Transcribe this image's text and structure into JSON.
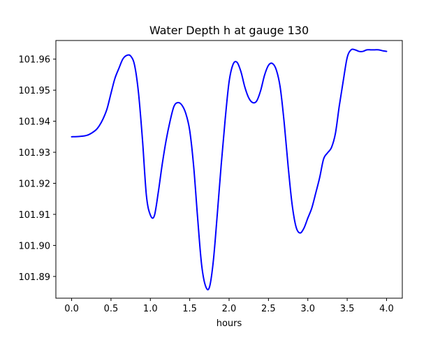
{
  "chart_data": {
    "type": "line",
    "title": "Water Depth h at gauge 130",
    "xlabel": "hours",
    "ylabel": "",
    "xlim": [
      -0.2,
      4.2
    ],
    "ylim": [
      101.883,
      101.966
    ],
    "x_ticks": [
      0.0,
      0.5,
      1.0,
      1.5,
      2.0,
      2.5,
      3.0,
      3.5,
      4.0
    ],
    "x_tick_labels": [
      "0.0",
      "0.5",
      "1.0",
      "1.5",
      "2.0",
      "2.5",
      "3.0",
      "3.5",
      "4.0"
    ],
    "y_ticks": [
      101.89,
      101.9,
      101.91,
      101.92,
      101.93,
      101.94,
      101.95,
      101.96
    ],
    "y_tick_labels": [
      "101.89",
      "101.90",
      "101.91",
      "101.92",
      "101.93",
      "101.94",
      "101.95",
      "101.96"
    ],
    "grid": false,
    "legend": "none",
    "series": [
      {
        "color": "#0000ff",
        "x": [
          0.0,
          0.1,
          0.2,
          0.3,
          0.35,
          0.4,
          0.45,
          0.5,
          0.55,
          0.6,
          0.65,
          0.7,
          0.75,
          0.8,
          0.85,
          0.9,
          0.95,
          1.0,
          1.05,
          1.1,
          1.15,
          1.2,
          1.25,
          1.3,
          1.35,
          1.4,
          1.45,
          1.5,
          1.55,
          1.6,
          1.65,
          1.7,
          1.75,
          1.8,
          1.85,
          1.9,
          1.95,
          2.0,
          2.05,
          2.1,
          2.15,
          2.2,
          2.25,
          2.3,
          2.35,
          2.4,
          2.45,
          2.5,
          2.55,
          2.6,
          2.65,
          2.7,
          2.75,
          2.8,
          2.85,
          2.9,
          2.95,
          3.0,
          3.05,
          3.1,
          3.15,
          3.2,
          3.25,
          3.3,
          3.35,
          3.4,
          3.45,
          3.5,
          3.55,
          3.6,
          3.65,
          3.7,
          3.75,
          3.8,
          3.85,
          3.9,
          3.95,
          4.0
        ],
        "y": [
          101.935,
          101.9351,
          101.9355,
          101.937,
          101.9385,
          101.9408,
          101.944,
          101.949,
          101.9538,
          101.957,
          101.96,
          101.9612,
          101.961,
          101.958,
          101.949,
          101.934,
          101.916,
          101.9098,
          101.9095,
          101.917,
          101.926,
          101.9338,
          101.94,
          101.9448,
          101.946,
          101.9452,
          101.9425,
          101.937,
          101.9255,
          101.909,
          101.894,
          101.887,
          101.8865,
          101.895,
          101.91,
          101.926,
          101.9405,
          101.9527,
          101.9583,
          101.959,
          101.956,
          101.951,
          101.9475,
          101.946,
          101.9465,
          101.9498,
          101.9548,
          101.958,
          101.9586,
          101.9565,
          101.9508,
          101.9395,
          101.9255,
          101.9133,
          101.906,
          101.904,
          101.9055,
          101.9088,
          101.912,
          101.9168,
          101.9218,
          101.9278,
          101.9298,
          101.9315,
          101.936,
          101.945,
          101.953,
          101.9605,
          101.963,
          101.963,
          101.9625,
          101.9625,
          101.963,
          101.963,
          101.963,
          101.963,
          101.9627,
          101.9625
        ]
      }
    ]
  }
}
